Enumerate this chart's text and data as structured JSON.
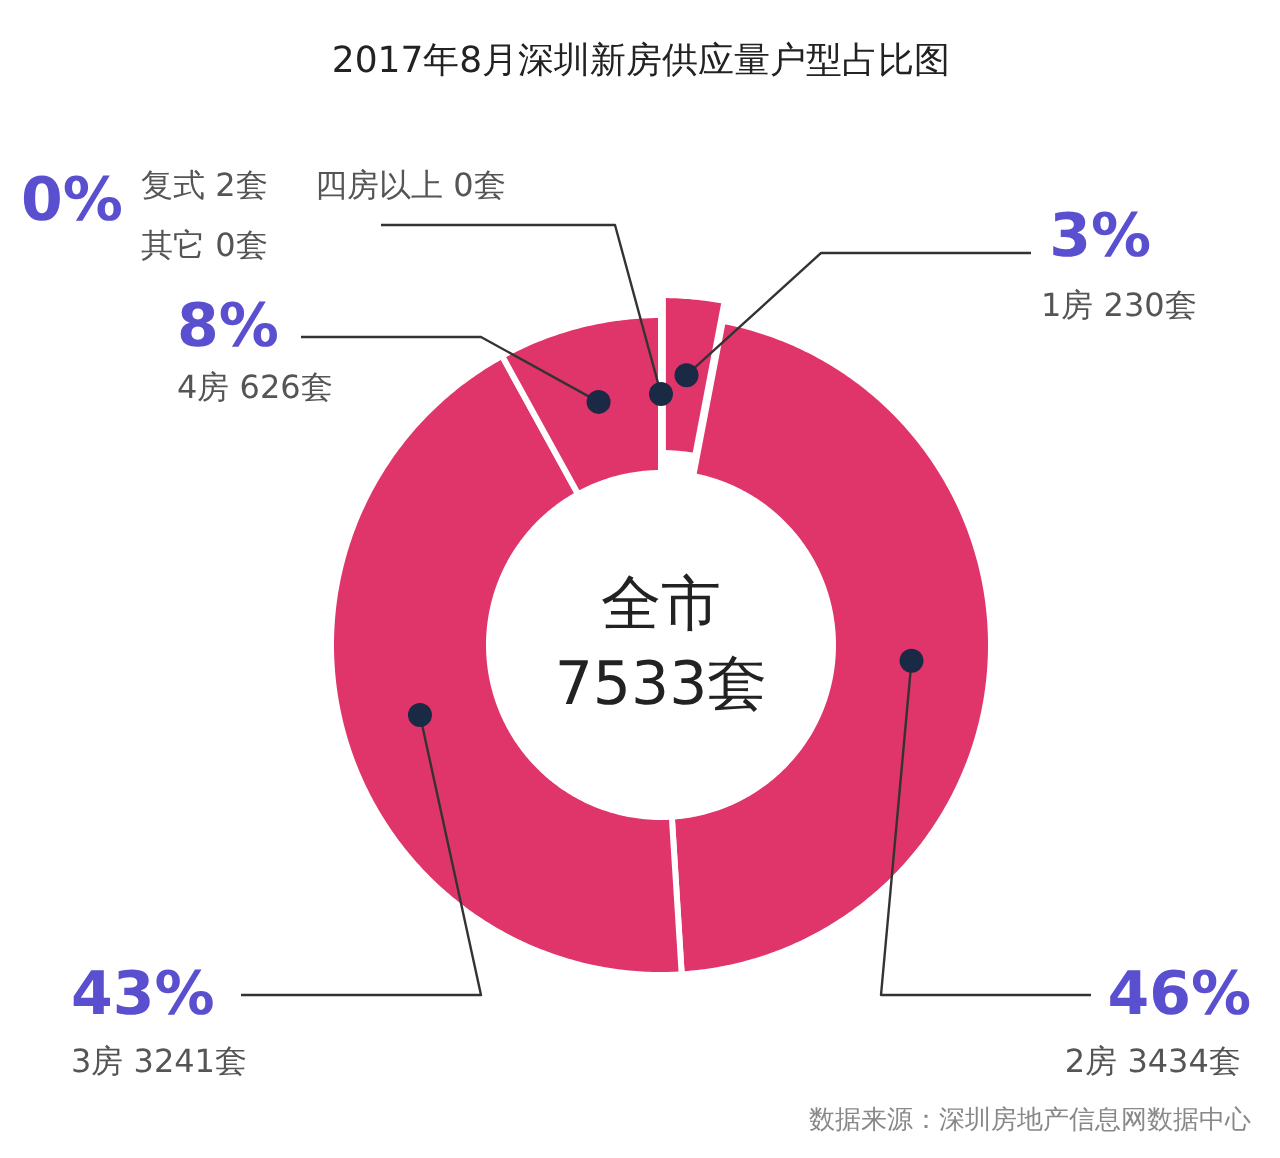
{
  "chart_data": {
    "type": "donut",
    "title": "2017年8月深圳新房供应量户型占比图",
    "categories": [
      "1房 230套",
      "2房  3434套",
      "3房  3241套",
      "4房 626套",
      "复式 2套",
      "四房以上 0套",
      "其它 0套"
    ],
    "values": [
      3,
      46,
      43,
      8,
      0,
      0,
      0
    ],
    "colors": [
      "#e0356a",
      "#e0356a",
      "#e0356a",
      "#e0356a",
      "#e0356a",
      "#e0356a",
      "#e0356a"
    ],
    "value_labels": [
      "3%",
      "46%",
      "43%",
      "8%",
      "0%",
      null,
      null
    ],
    "annotations": [
      "全市\n7533套",
      "数据来源：深圳房地产信息网数据中心"
    ]
  }
}
